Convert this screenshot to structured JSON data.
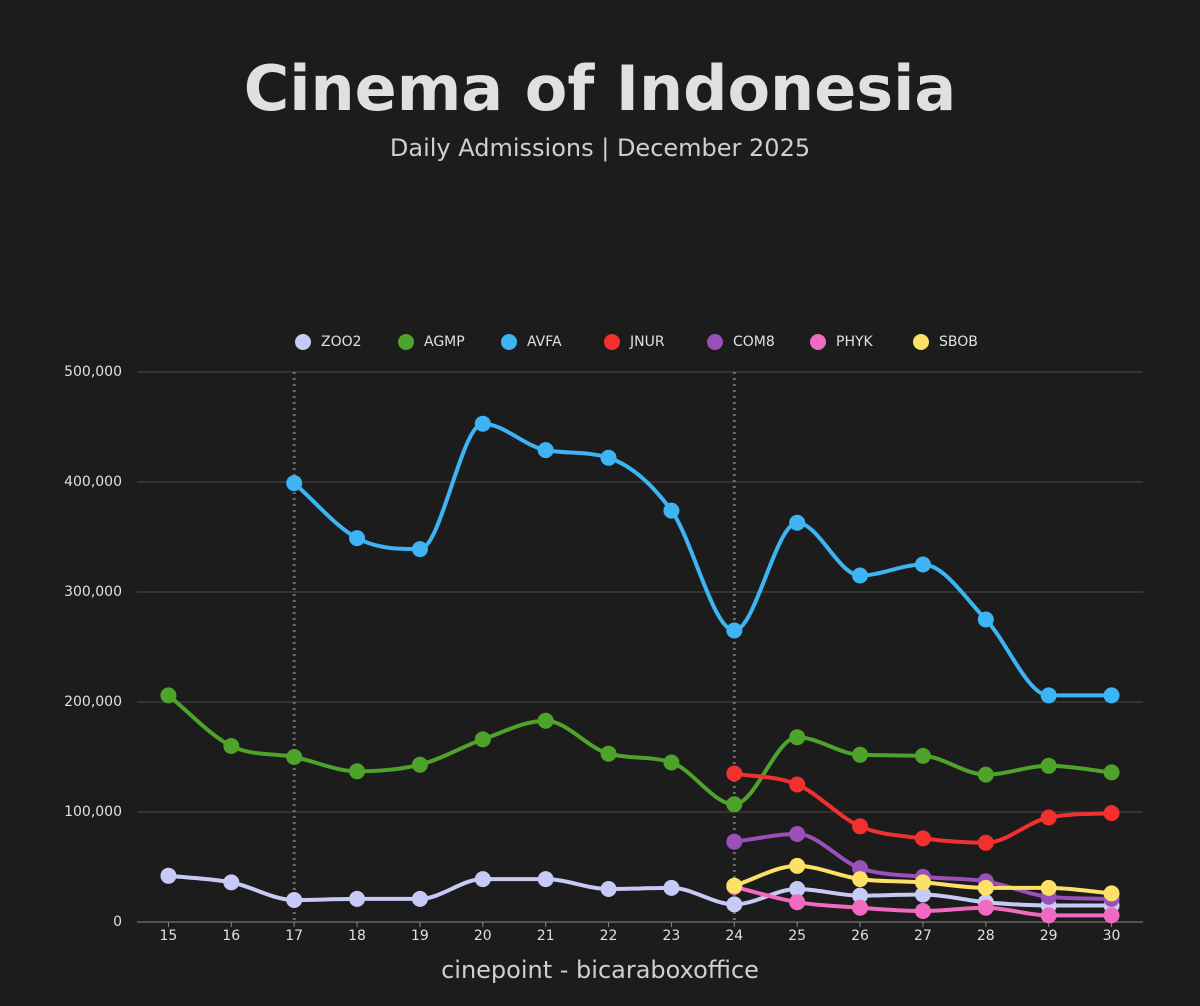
{
  "chart_data": {
    "type": "line",
    "title": "Cinema of Indonesia",
    "subtitle": "Daily Admissions | December 2025",
    "source": "cinepoint - bicaraboxoffice",
    "x": [
      15,
      16,
      17,
      18,
      19,
      20,
      21,
      22,
      23,
      24,
      25,
      26,
      27,
      28,
      29,
      30
    ],
    "xlim": [
      14.5,
      30.5
    ],
    "xticks": [
      15,
      16,
      17,
      18,
      19,
      20,
      21,
      22,
      23,
      24,
      25,
      26,
      27,
      28,
      29,
      30
    ],
    "ylim": [
      0,
      500000
    ],
    "yticks": [
      0,
      {
        "value": 100000,
        "label": "100,000"
      },
      {
        "value": 200000,
        "label": "200,000"
      },
      {
        "value": 300000,
        "label": "300,000"
      },
      {
        "value": 400000,
        "label": "400,000"
      },
      {
        "value": 500000,
        "label": "500,000"
      }
    ],
    "grid": true,
    "legend": "top",
    "vlines": [
      17,
      24
    ],
    "series": [
      {
        "name": "ZOO2",
        "color": "#c7caf7",
        "values": [
          42000,
          36000,
          20000,
          21000,
          21000,
          39000,
          39000,
          30000,
          31000,
          16000,
          30000,
          24000,
          25000,
          18000,
          15000,
          15000
        ]
      },
      {
        "name": "AGMP",
        "color": "#4ea32a",
        "values": [
          206000,
          160000,
          150000,
          137000,
          143000,
          166000,
          183000,
          153000,
          145000,
          107000,
          168000,
          152000,
          151000,
          134000,
          142000,
          136000
        ]
      },
      {
        "name": "AVFA",
        "color": "#3db5f5",
        "values": [
          null,
          null,
          399000,
          349000,
          339000,
          453000,
          429000,
          422000,
          374000,
          265000,
          363000,
          315000,
          325000,
          275000,
          206000,
          206000
        ]
      },
      {
        "name": "JNUR",
        "color": "#f2302f",
        "values": [
          null,
          null,
          null,
          null,
          null,
          null,
          null,
          null,
          null,
          135000,
          125000,
          87000,
          76000,
          72000,
          95000,
          99000
        ]
      },
      {
        "name": "COM8",
        "color": "#9b4fb8",
        "values": [
          null,
          null,
          null,
          null,
          null,
          null,
          null,
          null,
          null,
          73000,
          80000,
          49000,
          41000,
          37000,
          23000,
          21000
        ]
      },
      {
        "name": "PHYK",
        "color": "#f06ac0",
        "values": [
          null,
          null,
          null,
          null,
          null,
          null,
          null,
          null,
          null,
          32000,
          18000,
          13000,
          10000,
          13000,
          6000,
          6000
        ]
      },
      {
        "name": "SBOB",
        "color": "#fde066",
        "values": [
          null,
          null,
          null,
          null,
          null,
          null,
          null,
          null,
          null,
          33000,
          51000,
          39000,
          36000,
          31000,
          31000,
          26000
        ]
      }
    ]
  }
}
